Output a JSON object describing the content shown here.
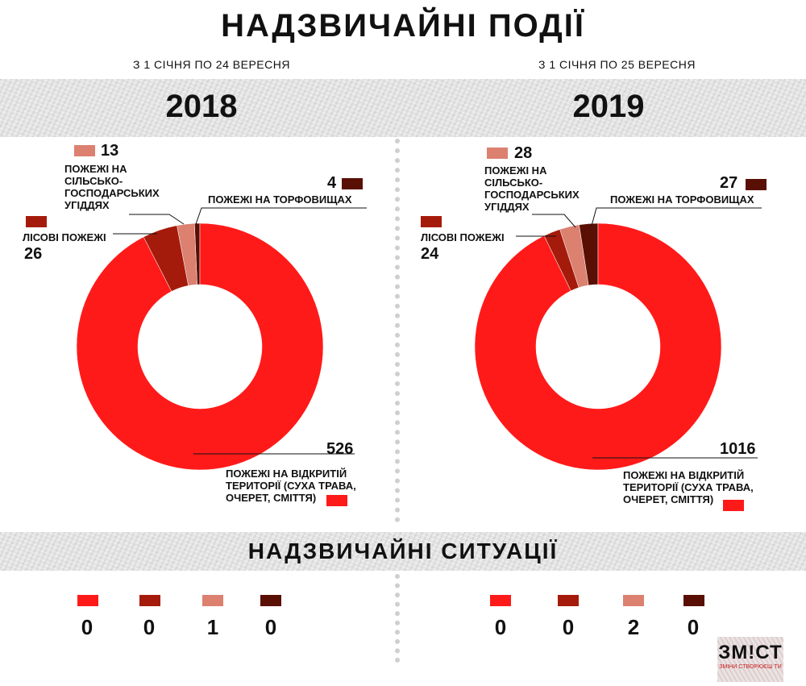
{
  "title": "НАДЗВИЧАЙНІ ПОДІЇ",
  "periods": [
    "З 1 СІЧНЯ ПО 24 ВЕРЕСНЯ",
    "З 1 СІЧНЯ ПО 25 ВЕРЕСНЯ"
  ],
  "situations_title": "НАДЗВИЧАЙНІ СИТУАЦІЇ",
  "colors": {
    "open": "#ff1a1a",
    "forest": "#a51b0b",
    "agri": "#dc8070",
    "peat": "#5a0f04"
  },
  "chart_data": [
    {
      "type": "pie",
      "title": "2018",
      "categories": [
        "ПОЖЕЖІ НА ВІДКРИТІЙ ТЕРИТОРІЇ (СУХА ТРАВА, ОЧЕРЕТ, СМІТТЯ)",
        "ЛІСОВІ ПОЖЕЖІ",
        "ПОЖЕЖІ НА СІЛЬСЬКО-ГОСПОДАРСЬКИХ УГІДДЯХ",
        "ПОЖЕЖІ НА ТОРФОВИЩАХ"
      ],
      "values": [
        526,
        26,
        13,
        4
      ]
    },
    {
      "type": "pie",
      "title": "2019",
      "categories": [
        "ПОЖЕЖІ НА ВІДКРИТІЙ ТЕРИТОРІЇ (СУХА ТРАВА, ОЧЕРЕТ, СМІТТЯ)",
        "ЛІСОВІ ПОЖЕЖІ",
        "ПОЖЕЖІ НА СІЛЬСЬКО-ГОСПОДАРСЬКИХ УГІДДЯХ",
        "ПОЖЕЖІ НА ТОРФОВИЩАХ"
      ],
      "values": [
        1016,
        24,
        28,
        27
      ]
    }
  ],
  "situations": [
    {
      "values": [
        "0",
        "0",
        "1",
        "0"
      ]
    },
    {
      "values": [
        "0",
        "0",
        "2",
        "0"
      ]
    }
  ],
  "logo": {
    "main": "ЗМ!СТ",
    "sub": "ЗМІНИ СТВОРЮЄШ ТИ"
  }
}
